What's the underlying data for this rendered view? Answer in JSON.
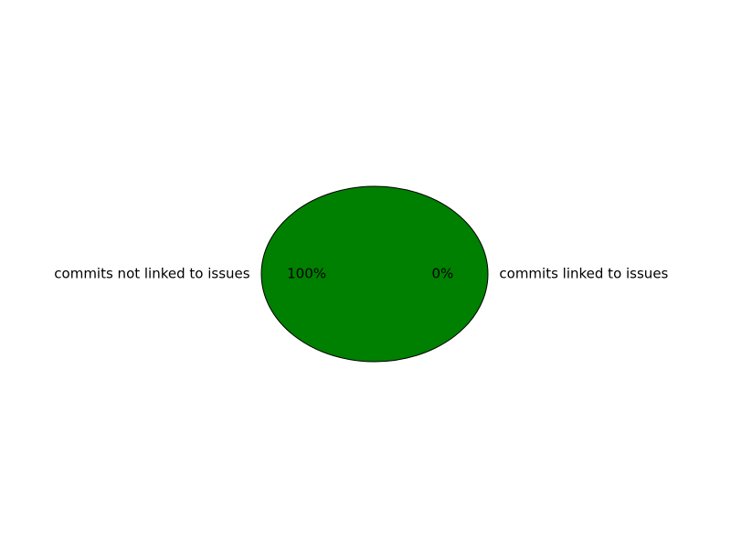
{
  "chart_data": {
    "type": "pie",
    "slices": [
      {
        "label": "commits linked to issues",
        "value": 0,
        "percent_label": "0%",
        "color": "#ff0000"
      },
      {
        "label": "commits not linked to issues",
        "value": 100,
        "percent_label": "100%",
        "color": "#008000"
      }
    ],
    "start_angle": 0,
    "counterclock": true,
    "edge_color": "#000000",
    "legend": false
  }
}
